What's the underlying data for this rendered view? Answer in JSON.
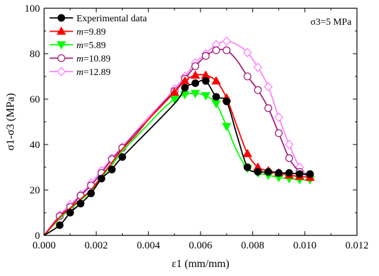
{
  "chart_data": {
    "type": "line",
    "title": "",
    "xlabel": "ε1 (mm/mm)",
    "ylabel": "σ1-σ3 (MPa)",
    "xlim": [
      0,
      0.012
    ],
    "ylim": [
      0,
      100
    ],
    "x_ticks": [
      "0.000",
      "0.002",
      "0.004",
      "0.006",
      "0.008",
      "0.010",
      "0.012"
    ],
    "y_ticks": [
      "0",
      "20",
      "40",
      "60",
      "80",
      "100"
    ],
    "annotation": "σ3=5 MPa",
    "legend_position": "top-left",
    "grid": false,
    "series": [
      {
        "name": "Experimental data",
        "legend_prefix": "",
        "legend_suffix": "Experimental data",
        "color": "#000000",
        "marker": "circle-filled",
        "points": [
          [
            0.0006,
            4.5
          ],
          [
            0.001,
            10
          ],
          [
            0.0014,
            14
          ],
          [
            0.0018,
            18.5
          ],
          [
            0.0022,
            25
          ],
          [
            0.0026,
            29
          ],
          [
            0.003,
            34.5
          ],
          [
            0.0054,
            65
          ],
          [
            0.0058,
            67
          ],
          [
            0.0062,
            68
          ],
          [
            0.0066,
            61
          ],
          [
            0.007,
            59
          ],
          [
            0.0078,
            30
          ],
          [
            0.0082,
            28
          ],
          [
            0.0086,
            28
          ],
          [
            0.009,
            27.5
          ],
          [
            0.0094,
            27.5
          ],
          [
            0.0098,
            27
          ],
          [
            0.0102,
            27
          ]
        ],
        "curve": [
          [
            0,
            0
          ],
          [
            0.0006,
            4.5
          ],
          [
            0.001,
            10
          ],
          [
            0.0014,
            14
          ],
          [
            0.0018,
            18.5
          ],
          [
            0.0022,
            25
          ],
          [
            0.0026,
            29
          ],
          [
            0.003,
            34.5
          ],
          [
            0.005,
            58
          ],
          [
            0.0054,
            65
          ],
          [
            0.0058,
            67
          ],
          [
            0.0062,
            68
          ],
          [
            0.0066,
            61
          ],
          [
            0.007,
            59
          ],
          [
            0.0074,
            44
          ],
          [
            0.0078,
            30
          ],
          [
            0.0082,
            28
          ],
          [
            0.0086,
            28
          ],
          [
            0.009,
            27.5
          ],
          [
            0.0094,
            27.5
          ],
          [
            0.0098,
            27
          ],
          [
            0.0102,
            27
          ]
        ]
      },
      {
        "name": "m=9.89",
        "legend_prefix": "m",
        "legend_suffix": "=9.89",
        "color": "#ff0000",
        "marker": "triangle-up",
        "points": [
          [
            0.005,
            63
          ],
          [
            0.0054,
            68
          ],
          [
            0.0058,
            70.5
          ],
          [
            0.0062,
            70.5
          ],
          [
            0.0066,
            68
          ],
          [
            0.007,
            60.5
          ],
          [
            0.0078,
            36
          ],
          [
            0.0082,
            30
          ],
          [
            0.0086,
            28.5
          ],
          [
            0.009,
            27.5
          ],
          [
            0.0094,
            26.5
          ],
          [
            0.0098,
            26
          ],
          [
            0.0102,
            25.5
          ]
        ],
        "curve": [
          [
            0,
            0
          ],
          [
            0.0006,
            8
          ],
          [
            0.001,
            12
          ],
          [
            0.0014,
            16
          ],
          [
            0.0018,
            20
          ],
          [
            0.0022,
            26
          ],
          [
            0.0026,
            32
          ],
          [
            0.003,
            38
          ],
          [
            0.0035,
            44
          ],
          [
            0.004,
            51
          ],
          [
            0.0045,
            57
          ],
          [
            0.005,
            63
          ],
          [
            0.0054,
            68
          ],
          [
            0.0058,
            70.5
          ],
          [
            0.0062,
            70.5
          ],
          [
            0.0066,
            68
          ],
          [
            0.007,
            60.5
          ],
          [
            0.0074,
            48
          ],
          [
            0.0078,
            36
          ],
          [
            0.0082,
            30
          ],
          [
            0.0086,
            28.5
          ],
          [
            0.009,
            27.5
          ],
          [
            0.0094,
            26.5
          ],
          [
            0.0098,
            26
          ],
          [
            0.0102,
            25.5
          ]
        ]
      },
      {
        "name": "m=5.89",
        "legend_prefix": "m",
        "legend_suffix": "=5.89",
        "color": "#00ff00",
        "marker": "triangle-down",
        "points": [
          [
            0.005,
            60
          ],
          [
            0.0054,
            62
          ],
          [
            0.0058,
            62.5
          ],
          [
            0.0062,
            61.5
          ],
          [
            0.0066,
            58
          ],
          [
            0.007,
            48
          ],
          [
            0.0078,
            29.5
          ],
          [
            0.0082,
            27.5
          ],
          [
            0.0086,
            26.5
          ],
          [
            0.009,
            25.5
          ],
          [
            0.0094,
            25
          ],
          [
            0.0098,
            24.5
          ],
          [
            0.0102,
            24.5
          ]
        ],
        "curve": [
          [
            0,
            0
          ],
          [
            0.0006,
            7.5
          ],
          [
            0.001,
            11.5
          ],
          [
            0.0014,
            15.5
          ],
          [
            0.0018,
            19.5
          ],
          [
            0.0022,
            25.5
          ],
          [
            0.0026,
            31
          ],
          [
            0.003,
            37
          ],
          [
            0.0035,
            43
          ],
          [
            0.004,
            49
          ],
          [
            0.0045,
            55
          ],
          [
            0.005,
            60
          ],
          [
            0.0054,
            62
          ],
          [
            0.0058,
            62.5
          ],
          [
            0.0062,
            61.5
          ],
          [
            0.0066,
            58
          ],
          [
            0.007,
            48
          ],
          [
            0.0074,
            37
          ],
          [
            0.0078,
            29.5
          ],
          [
            0.0082,
            27.5
          ],
          [
            0.0086,
            26.5
          ],
          [
            0.009,
            25.5
          ],
          [
            0.0094,
            25
          ],
          [
            0.0098,
            24.5
          ],
          [
            0.0102,
            24.5
          ]
        ]
      },
      {
        "name": "m=10.89",
        "legend_prefix": "m",
        "legend_suffix": "=10.89",
        "color": "#a0207a",
        "marker": "circle-open",
        "points": [
          [
            0.0006,
            8.5
          ],
          [
            0.001,
            12.5
          ],
          [
            0.0014,
            17.5
          ],
          [
            0.0018,
            22
          ],
          [
            0.0022,
            27.5
          ],
          [
            0.0026,
            33.5
          ],
          [
            0.003,
            38.5
          ],
          [
            0.005,
            63.5
          ],
          [
            0.0054,
            69
          ],
          [
            0.0058,
            74.5
          ],
          [
            0.0062,
            79
          ],
          [
            0.0066,
            81.5
          ],
          [
            0.007,
            81.5
          ],
          [
            0.0078,
            70
          ],
          [
            0.0082,
            64
          ],
          [
            0.0086,
            56
          ],
          [
            0.009,
            45
          ],
          [
            0.0094,
            34
          ],
          [
            0.0098,
            28
          ],
          [
            0.0102,
            26
          ]
        ],
        "curve": [
          [
            0,
            0
          ],
          [
            0.0006,
            8.5
          ],
          [
            0.001,
            12.5
          ],
          [
            0.0014,
            17.5
          ],
          [
            0.0018,
            22
          ],
          [
            0.0022,
            27.5
          ],
          [
            0.0026,
            33.5
          ],
          [
            0.003,
            38.5
          ],
          [
            0.0035,
            45
          ],
          [
            0.004,
            51
          ],
          [
            0.0045,
            57.5
          ],
          [
            0.005,
            63.5
          ],
          [
            0.0054,
            69
          ],
          [
            0.0058,
            74.5
          ],
          [
            0.0062,
            79
          ],
          [
            0.0066,
            81.5
          ],
          [
            0.007,
            81.5
          ],
          [
            0.0074,
            77
          ],
          [
            0.0078,
            70
          ],
          [
            0.0082,
            64
          ],
          [
            0.0086,
            56
          ],
          [
            0.009,
            45
          ],
          [
            0.0094,
            34
          ],
          [
            0.0098,
            28
          ],
          [
            0.0102,
            26
          ]
        ]
      },
      {
        "name": "m=12.89",
        "legend_prefix": "m",
        "legend_suffix": "=12.89",
        "color": "#ff80ff",
        "marker": "diamond-open",
        "points": [
          [
            0.0006,
            9
          ],
          [
            0.001,
            13.5
          ],
          [
            0.0014,
            18
          ],
          [
            0.0018,
            23
          ],
          [
            0.0022,
            28.5
          ],
          [
            0.0026,
            34
          ],
          [
            0.003,
            39
          ],
          [
            0.005,
            64.5
          ],
          [
            0.0054,
            70
          ],
          [
            0.0058,
            76
          ],
          [
            0.0062,
            80
          ],
          [
            0.0066,
            84
          ],
          [
            0.007,
            85.5
          ],
          [
            0.0078,
            80.5
          ],
          [
            0.0082,
            74
          ],
          [
            0.0086,
            65.5
          ],
          [
            0.009,
            52
          ],
          [
            0.0094,
            40
          ],
          [
            0.0098,
            30
          ],
          [
            0.0102,
            26
          ]
        ],
        "curve": [
          [
            0,
            0
          ],
          [
            0.0006,
            9
          ],
          [
            0.001,
            13.5
          ],
          [
            0.0014,
            18
          ],
          [
            0.0018,
            23
          ],
          [
            0.0022,
            28.5
          ],
          [
            0.0026,
            34
          ],
          [
            0.003,
            39
          ],
          [
            0.0035,
            45.5
          ],
          [
            0.004,
            52
          ],
          [
            0.0045,
            58
          ],
          [
            0.005,
            64.5
          ],
          [
            0.0054,
            70
          ],
          [
            0.0058,
            76
          ],
          [
            0.0062,
            80
          ],
          [
            0.0066,
            84
          ],
          [
            0.007,
            85.5
          ],
          [
            0.0074,
            84
          ],
          [
            0.0078,
            80.5
          ],
          [
            0.0082,
            74
          ],
          [
            0.0086,
            65.5
          ],
          [
            0.009,
            52
          ],
          [
            0.0094,
            40
          ],
          [
            0.0098,
            30
          ],
          [
            0.0102,
            26
          ]
        ]
      }
    ]
  }
}
